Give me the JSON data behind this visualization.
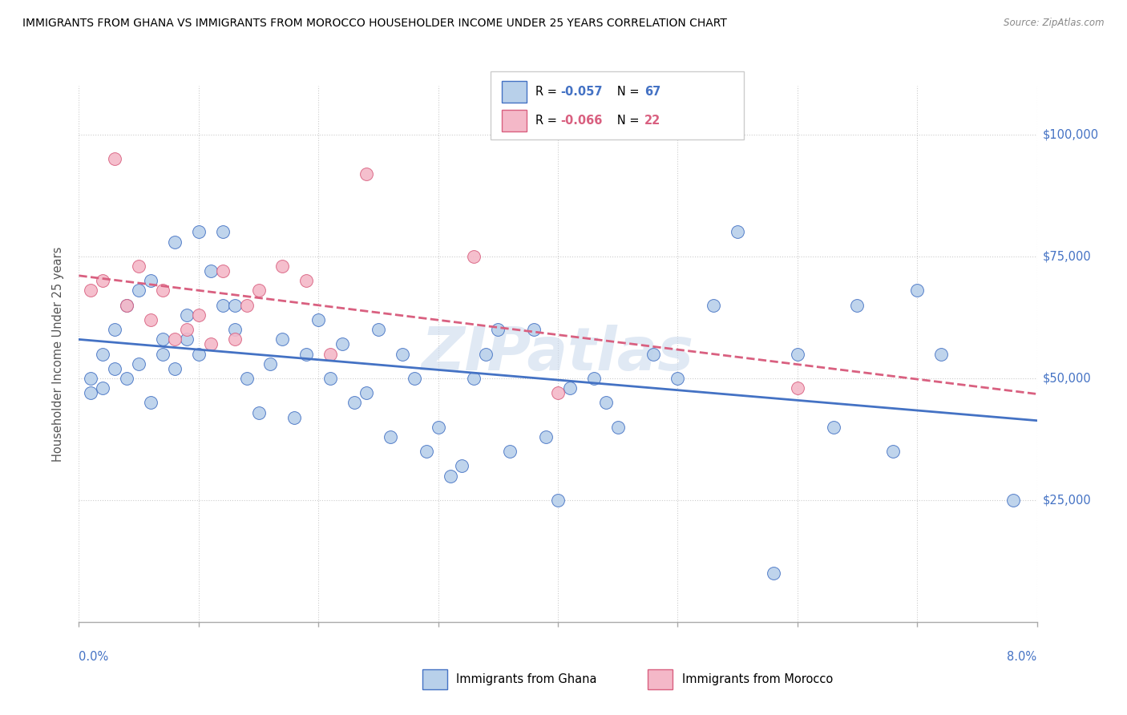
{
  "title": "IMMIGRANTS FROM GHANA VS IMMIGRANTS FROM MOROCCO HOUSEHOLDER INCOME UNDER 25 YEARS CORRELATION CHART",
  "source": "Source: ZipAtlas.com",
  "ylabel": "Householder Income Under 25 years",
  "legend_label1": "Immigrants from Ghana",
  "legend_label2": "Immigrants from Morocco",
  "R1": "-0.057",
  "N1": "67",
  "R2": "-0.066",
  "N2": "22",
  "color_ghana_fill": "#b8d0ea",
  "color_ghana_edge": "#4472c4",
  "color_morocco_fill": "#f4b8c8",
  "color_morocco_edge": "#d96080",
  "color_line_ghana": "#4472c4",
  "color_line_morocco": "#d96080",
  "color_axis_labels": "#4472c4",
  "ytick_labels": [
    "$25,000",
    "$50,000",
    "$75,000",
    "$100,000"
  ],
  "ytick_values": [
    25000,
    50000,
    75000,
    100000
  ],
  "xmin": 0.0,
  "xmax": 0.08,
  "ymin": 0,
  "ymax": 110000,
  "ghana_x": [
    0.001,
    0.001,
    0.002,
    0.002,
    0.003,
    0.003,
    0.004,
    0.004,
    0.005,
    0.005,
    0.006,
    0.006,
    0.007,
    0.007,
    0.008,
    0.008,
    0.009,
    0.009,
    0.01,
    0.01,
    0.011,
    0.012,
    0.012,
    0.013,
    0.013,
    0.014,
    0.015,
    0.016,
    0.017,
    0.018,
    0.019,
    0.02,
    0.021,
    0.022,
    0.023,
    0.024,
    0.025,
    0.026,
    0.027,
    0.028,
    0.029,
    0.03,
    0.031,
    0.032,
    0.033,
    0.034,
    0.035,
    0.036,
    0.038,
    0.039,
    0.04,
    0.041,
    0.043,
    0.044,
    0.045,
    0.048,
    0.05,
    0.053,
    0.055,
    0.058,
    0.06,
    0.063,
    0.065,
    0.068,
    0.07,
    0.072,
    0.078
  ],
  "ghana_y": [
    50000,
    47000,
    55000,
    48000,
    60000,
    52000,
    65000,
    50000,
    68000,
    53000,
    70000,
    45000,
    58000,
    55000,
    52000,
    78000,
    63000,
    58000,
    80000,
    55000,
    72000,
    80000,
    65000,
    65000,
    60000,
    50000,
    43000,
    53000,
    58000,
    42000,
    55000,
    62000,
    50000,
    57000,
    45000,
    47000,
    60000,
    38000,
    55000,
    50000,
    35000,
    40000,
    30000,
    32000,
    50000,
    55000,
    60000,
    35000,
    60000,
    38000,
    25000,
    48000,
    50000,
    45000,
    40000,
    55000,
    50000,
    65000,
    80000,
    10000,
    55000,
    40000,
    65000,
    35000,
    68000,
    55000,
    25000
  ],
  "morocco_x": [
    0.001,
    0.002,
    0.003,
    0.004,
    0.005,
    0.006,
    0.007,
    0.008,
    0.009,
    0.01,
    0.011,
    0.012,
    0.013,
    0.014,
    0.015,
    0.017,
    0.019,
    0.021,
    0.024,
    0.033,
    0.04,
    0.06
  ],
  "morocco_y": [
    68000,
    70000,
    95000,
    65000,
    73000,
    62000,
    68000,
    58000,
    60000,
    63000,
    57000,
    72000,
    58000,
    65000,
    68000,
    73000,
    70000,
    55000,
    92000,
    75000,
    47000,
    48000
  ]
}
